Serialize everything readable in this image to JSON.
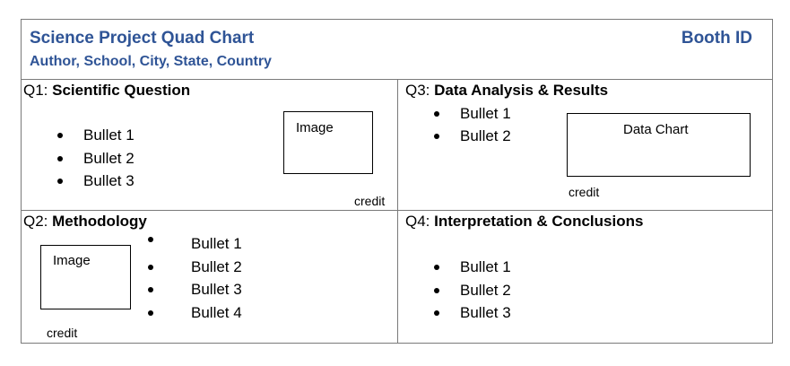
{
  "header": {
    "title": "Science Project Quad Chart",
    "subtitle": "Author, School, City, State, Country",
    "booth": "Booth ID"
  },
  "q1": {
    "prefix": "Q1: ",
    "heading": "Scientific Question",
    "bullets": [
      "Bullet 1",
      "Bullet 2",
      "Bullet 3"
    ],
    "image_label": "Image",
    "credit": "credit"
  },
  "q2": {
    "prefix": "Q2: ",
    "heading": "Methodology",
    "bullets": [
      "Bullet 1",
      "Bullet 2",
      "Bullet 3",
      "Bullet 4"
    ],
    "image_label": "Image",
    "credit": "credit"
  },
  "q3": {
    "prefix": "Q3: ",
    "heading": "Data Analysis & Results",
    "bullets": [
      "Bullet 1",
      "Bullet 2"
    ],
    "chart_label": "Data Chart",
    "credit": "credit"
  },
  "q4": {
    "prefix": "Q4: ",
    "heading": "Interpretation & Conclusions",
    "bullets": [
      "Bullet 1",
      "Bullet 2",
      "Bullet 3"
    ]
  }
}
